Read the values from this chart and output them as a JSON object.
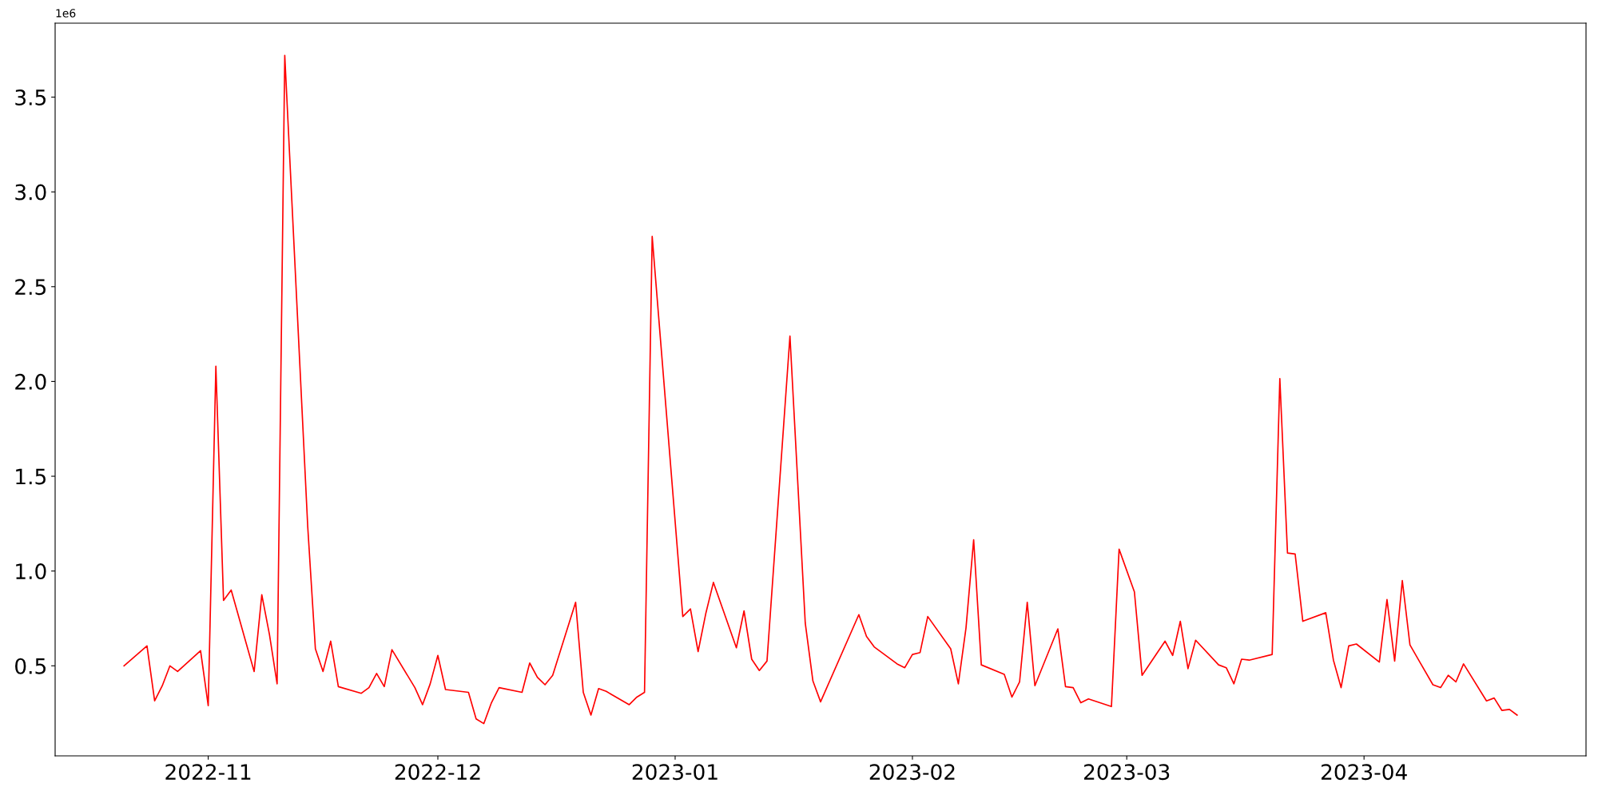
{
  "chart_data": {
    "type": "line",
    "x": [
      "2022-10-21",
      "2022-10-24",
      "2022-10-25",
      "2022-10-26",
      "2022-10-27",
      "2022-10-28",
      "2022-10-31",
      "2022-11-01",
      "2022-11-02",
      "2022-11-03",
      "2022-11-04",
      "2022-11-07",
      "2022-11-08",
      "2022-11-09",
      "2022-11-10",
      "2022-11-11",
      "2022-11-14",
      "2022-11-15",
      "2022-11-16",
      "2022-11-17",
      "2022-11-18",
      "2022-11-21",
      "2022-11-22",
      "2022-11-23",
      "2022-11-24",
      "2022-11-25",
      "2022-11-28",
      "2022-11-29",
      "2022-11-30",
      "2022-12-01",
      "2022-12-02",
      "2022-12-05",
      "2022-12-06",
      "2022-12-07",
      "2022-12-08",
      "2022-12-09",
      "2022-12-12",
      "2022-12-13",
      "2022-12-14",
      "2022-12-15",
      "2022-12-16",
      "2022-12-19",
      "2022-12-20",
      "2022-12-21",
      "2022-12-22",
      "2022-12-23",
      "2022-12-26",
      "2022-12-27",
      "2022-12-28",
      "2022-12-29",
      "2023-01-02",
      "2023-01-03",
      "2023-01-04",
      "2023-01-05",
      "2023-01-06",
      "2023-01-09",
      "2023-01-10",
      "2023-01-11",
      "2023-01-12",
      "2023-01-13",
      "2023-01-16",
      "2023-01-18",
      "2023-01-19",
      "2023-01-20",
      "2023-01-25",
      "2023-01-26",
      "2023-01-27",
      "2023-01-30",
      "2023-01-31",
      "2023-02-01",
      "2023-02-02",
      "2023-02-03",
      "2023-02-06",
      "2023-02-07",
      "2023-02-08",
      "2023-02-09",
      "2023-02-10",
      "2023-02-13",
      "2023-02-14",
      "2023-02-15",
      "2023-02-16",
      "2023-02-17",
      "2023-02-20",
      "2023-02-21",
      "2023-02-22",
      "2023-02-23",
      "2023-02-24",
      "2023-02-27",
      "2023-02-28",
      "2023-03-02",
      "2023-03-03",
      "2023-03-06",
      "2023-03-07",
      "2023-03-08",
      "2023-03-09",
      "2023-03-10",
      "2023-03-13",
      "2023-03-14",
      "2023-03-15",
      "2023-03-16",
      "2023-03-17",
      "2023-03-20",
      "2023-03-21",
      "2023-03-22",
      "2023-03-23",
      "2023-03-24",
      "2023-03-27",
      "2023-03-28",
      "2023-03-29",
      "2023-03-30",
      "2023-03-31",
      "2023-04-03",
      "2023-04-04",
      "2023-04-05",
      "2023-04-06",
      "2023-04-07",
      "2023-04-10",
      "2023-04-11",
      "2023-04-12",
      "2023-04-13",
      "2023-04-14",
      "2023-04-17",
      "2023-04-18",
      "2023-04-19",
      "2023-04-20",
      "2023-04-21"
    ],
    "series": [
      {
        "color": "#ff0000",
        "values": [
          0.5,
          0.605,
          0.315,
          0.395,
          0.5,
          0.47,
          0.58,
          0.29,
          2.08,
          0.845,
          0.9,
          0.47,
          0.875,
          0.665,
          0.405,
          3.72,
          1.235,
          0.59,
          0.47,
          0.63,
          0.39,
          0.355,
          0.385,
          0.46,
          0.39,
          0.585,
          0.385,
          0.295,
          0.405,
          0.555,
          0.375,
          0.36,
          0.22,
          0.195,
          0.305,
          0.385,
          0.36,
          0.515,
          0.44,
          0.4,
          0.45,
          0.835,
          0.36,
          0.24,
          0.38,
          0.365,
          0.295,
          0.335,
          0.36,
          2.765,
          0.76,
          0.8,
          0.575,
          0.775,
          0.94,
          0.595,
          0.79,
          0.535,
          0.475,
          0.525,
          2.24,
          0.725,
          0.42,
          0.31,
          0.77,
          0.655,
          0.6,
          0.51,
          0.49,
          0.56,
          0.57,
          0.76,
          0.59,
          0.405,
          0.7,
          1.165,
          0.505,
          0.455,
          0.335,
          0.415,
          0.835,
          0.395,
          0.695,
          0.39,
          0.385,
          0.305,
          0.325,
          0.285,
          1.115,
          0.89,
          0.45,
          0.63,
          0.555,
          0.735,
          0.485,
          0.635,
          0.505,
          0.49,
          0.405,
          0.535,
          0.53,
          0.56,
          2.015,
          1.095,
          1.09,
          0.735,
          0.78,
          0.53,
          0.385,
          0.605,
          0.615,
          0.52,
          0.85,
          0.525,
          0.95,
          0.61,
          0.4,
          0.385,
          0.45,
          0.415,
          0.51,
          0.315,
          0.33,
          0.265,
          0.27,
          0.24
        ]
      }
    ],
    "xlim": [
      "2022-10-12",
      "2023-04-30"
    ],
    "xticks": [
      {
        "value": "2022-11-01",
        "label": "2022-11"
      },
      {
        "value": "2022-12-01",
        "label": "2022-12"
      },
      {
        "value": "2023-01-01",
        "label": "2023-01"
      },
      {
        "value": "2023-02-01",
        "label": "2023-02"
      },
      {
        "value": "2023-03-01",
        "label": "2023-03"
      },
      {
        "value": "2023-04-01",
        "label": "2023-04"
      }
    ],
    "ylim": [
      0.025,
      3.89
    ],
    "yticks": [
      0.5,
      {
        "value": 1,
        "label": "1.0"
      },
      1.5,
      {
        "value": 2,
        "label": "2.0"
      },
      2.5,
      {
        "value": 3,
        "label": "3.0"
      },
      3.5
    ],
    "annotations": [
      "1e6"
    ],
    "grid": false,
    "legend": false,
    "marker": "none",
    "line_style": "solid"
  }
}
